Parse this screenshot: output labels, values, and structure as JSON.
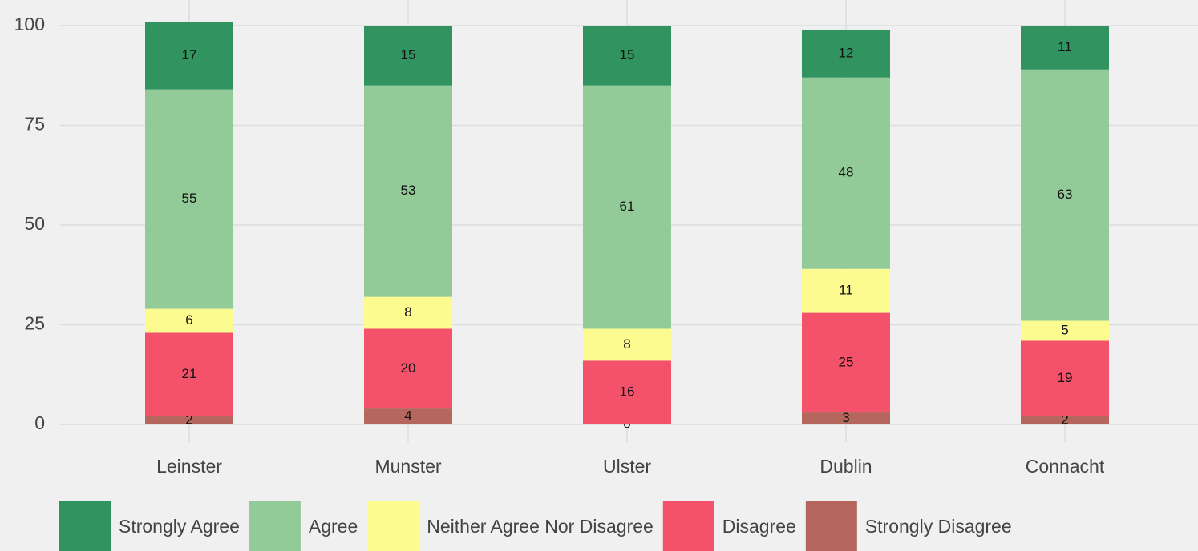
{
  "chart_data": {
    "type": "bar",
    "stacked": true,
    "categories": [
      "Leinster",
      "Munster",
      "Ulster",
      "Dublin",
      "Connacht"
    ],
    "series": [
      {
        "name": "Strongly Agree",
        "color": "#31935f",
        "values": [
          17,
          15,
          15,
          12,
          11
        ]
      },
      {
        "name": "Agree",
        "color": "#93cb98",
        "values": [
          55,
          53,
          61,
          48,
          63
        ]
      },
      {
        "name": "Neither Agree Nor Disagree",
        "color": "#fbfb90",
        "values": [
          6,
          8,
          8,
          11,
          5
        ]
      },
      {
        "name": "Disagree",
        "color": "#f4516a",
        "values": [
          21,
          20,
          16,
          25,
          19
        ]
      },
      {
        "name": "Strongly Disagree",
        "color": "#b5675d",
        "values": [
          2,
          4,
          0,
          3,
          2
        ]
      }
    ],
    "ylim": [
      0,
      100
    ],
    "yticks": [
      0,
      25,
      50,
      75,
      100
    ],
    "grid": true,
    "legend": "bottom"
  }
}
